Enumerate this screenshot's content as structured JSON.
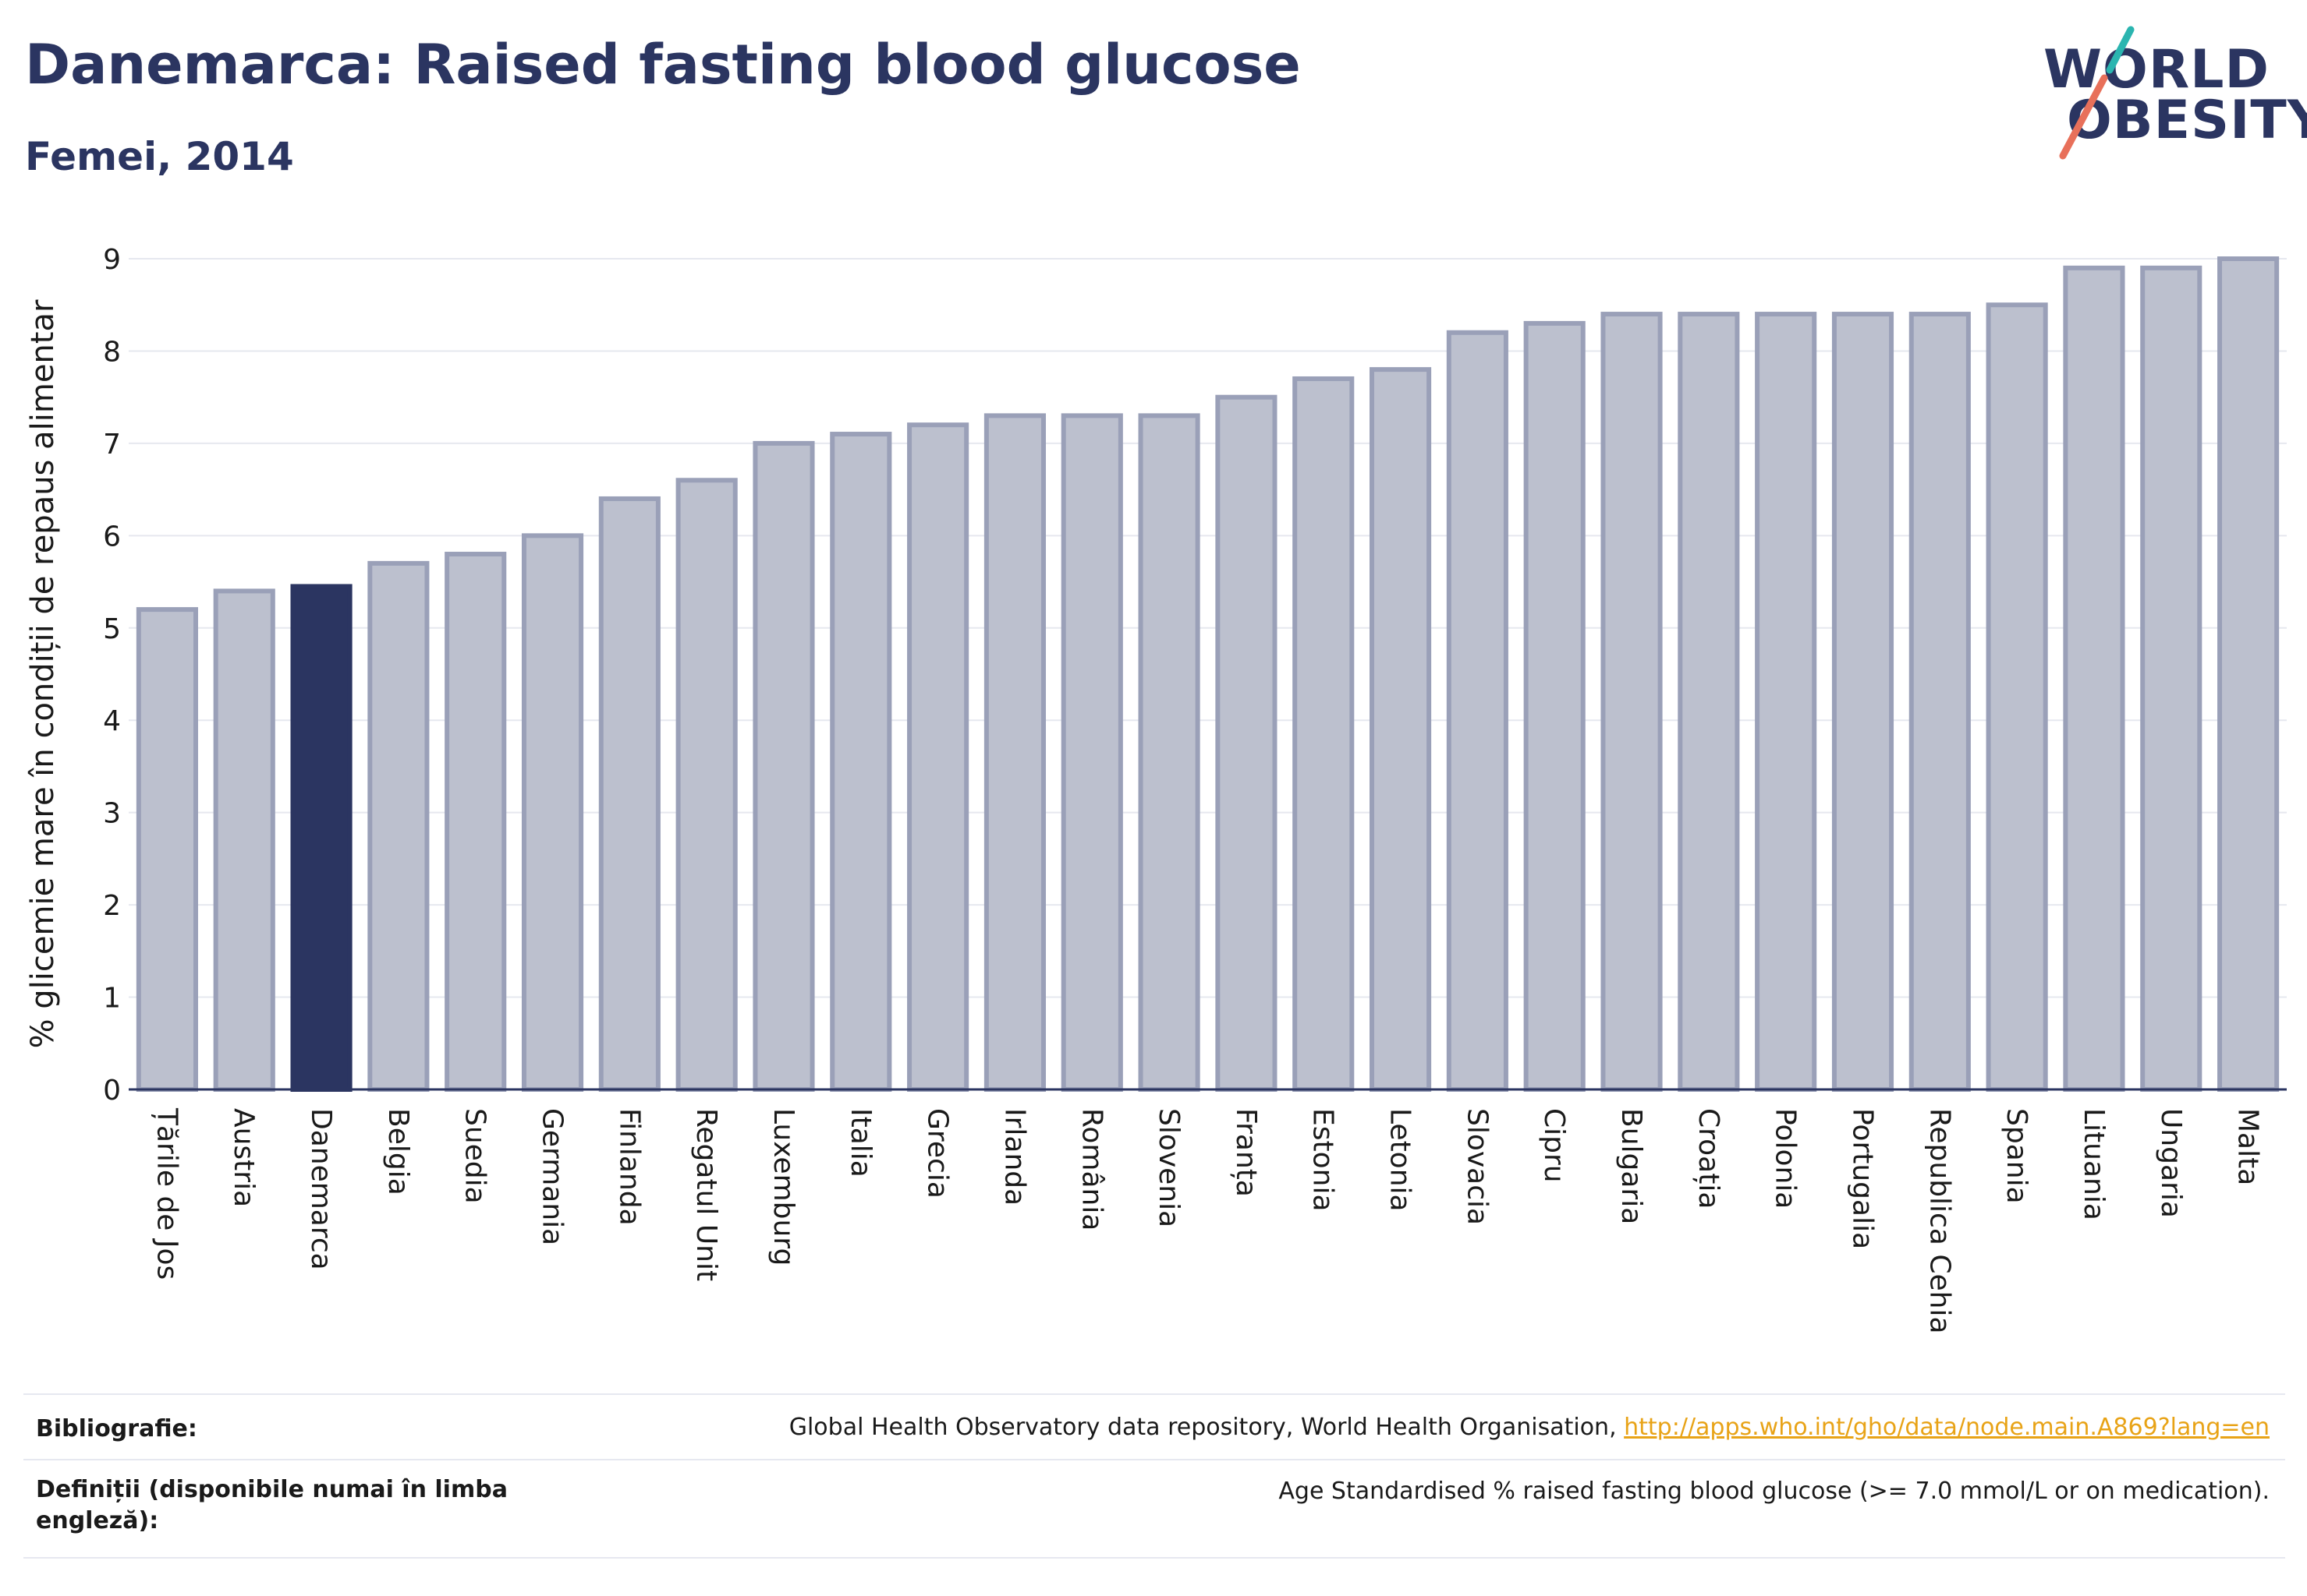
{
  "header": {
    "title": "Danemarca: Raised fasting blood glucose",
    "subtitle": "Femei, 2014"
  },
  "logo": {
    "line1": "WORLD",
    "line2": "OBESITY",
    "accent_teal": "#2bb5b0",
    "accent_coral": "#e8705a"
  },
  "colors": {
    "bar_default": "#bcc0ce",
    "bar_border": "#9aa0b8",
    "bar_highlight": "#2b3561",
    "grid": "#e6e8ef",
    "axis": "#2b3561"
  },
  "chart_data": {
    "type": "bar",
    "ylabel": "% glicemie mare în condiții de repaus alimentar",
    "ylim": [
      0,
      9
    ],
    "yticks": [
      0,
      1,
      2,
      3,
      4,
      5,
      6,
      7,
      8,
      9
    ],
    "grid": true,
    "highlight": "Danemarca",
    "categories": [
      "Țările de Jos",
      "Austria",
      "Danemarca",
      "Belgia",
      "Suedia",
      "Germania",
      "Finlanda",
      "Regatul Unit",
      "Luxemburg",
      "Italia",
      "Grecia",
      "Irlanda",
      "România",
      "Slovenia",
      "Franța",
      "Estonia",
      "Letonia",
      "Slovacia",
      "Cipru",
      "Bulgaria",
      "Croația",
      "Polonia",
      "Portugalia",
      "Republica Cehia",
      "Spania",
      "Lituania",
      "Ungaria",
      "Malta"
    ],
    "values": [
      5.2,
      5.4,
      5.45,
      5.7,
      5.8,
      6.0,
      6.4,
      6.6,
      7.0,
      7.1,
      7.2,
      7.3,
      7.3,
      7.3,
      7.5,
      7.7,
      7.8,
      8.2,
      8.3,
      8.4,
      8.4,
      8.4,
      8.4,
      8.4,
      8.5,
      8.9,
      8.9,
      9.0
    ]
  },
  "footer": {
    "bibliography_label": "Bibliografie:",
    "bibliography_text": "Global Health Observatory data repository, World Health Organisation, ",
    "bibliography_link": "http://apps.who.int/gho/data/node.main.A869?lang=en",
    "definitions_label": "Definiții (disponibile numai în limba engleză):",
    "definitions_text": "Age Standardised % raised fasting blood glucose (>= 7.0 mmol/L or on medication)."
  }
}
